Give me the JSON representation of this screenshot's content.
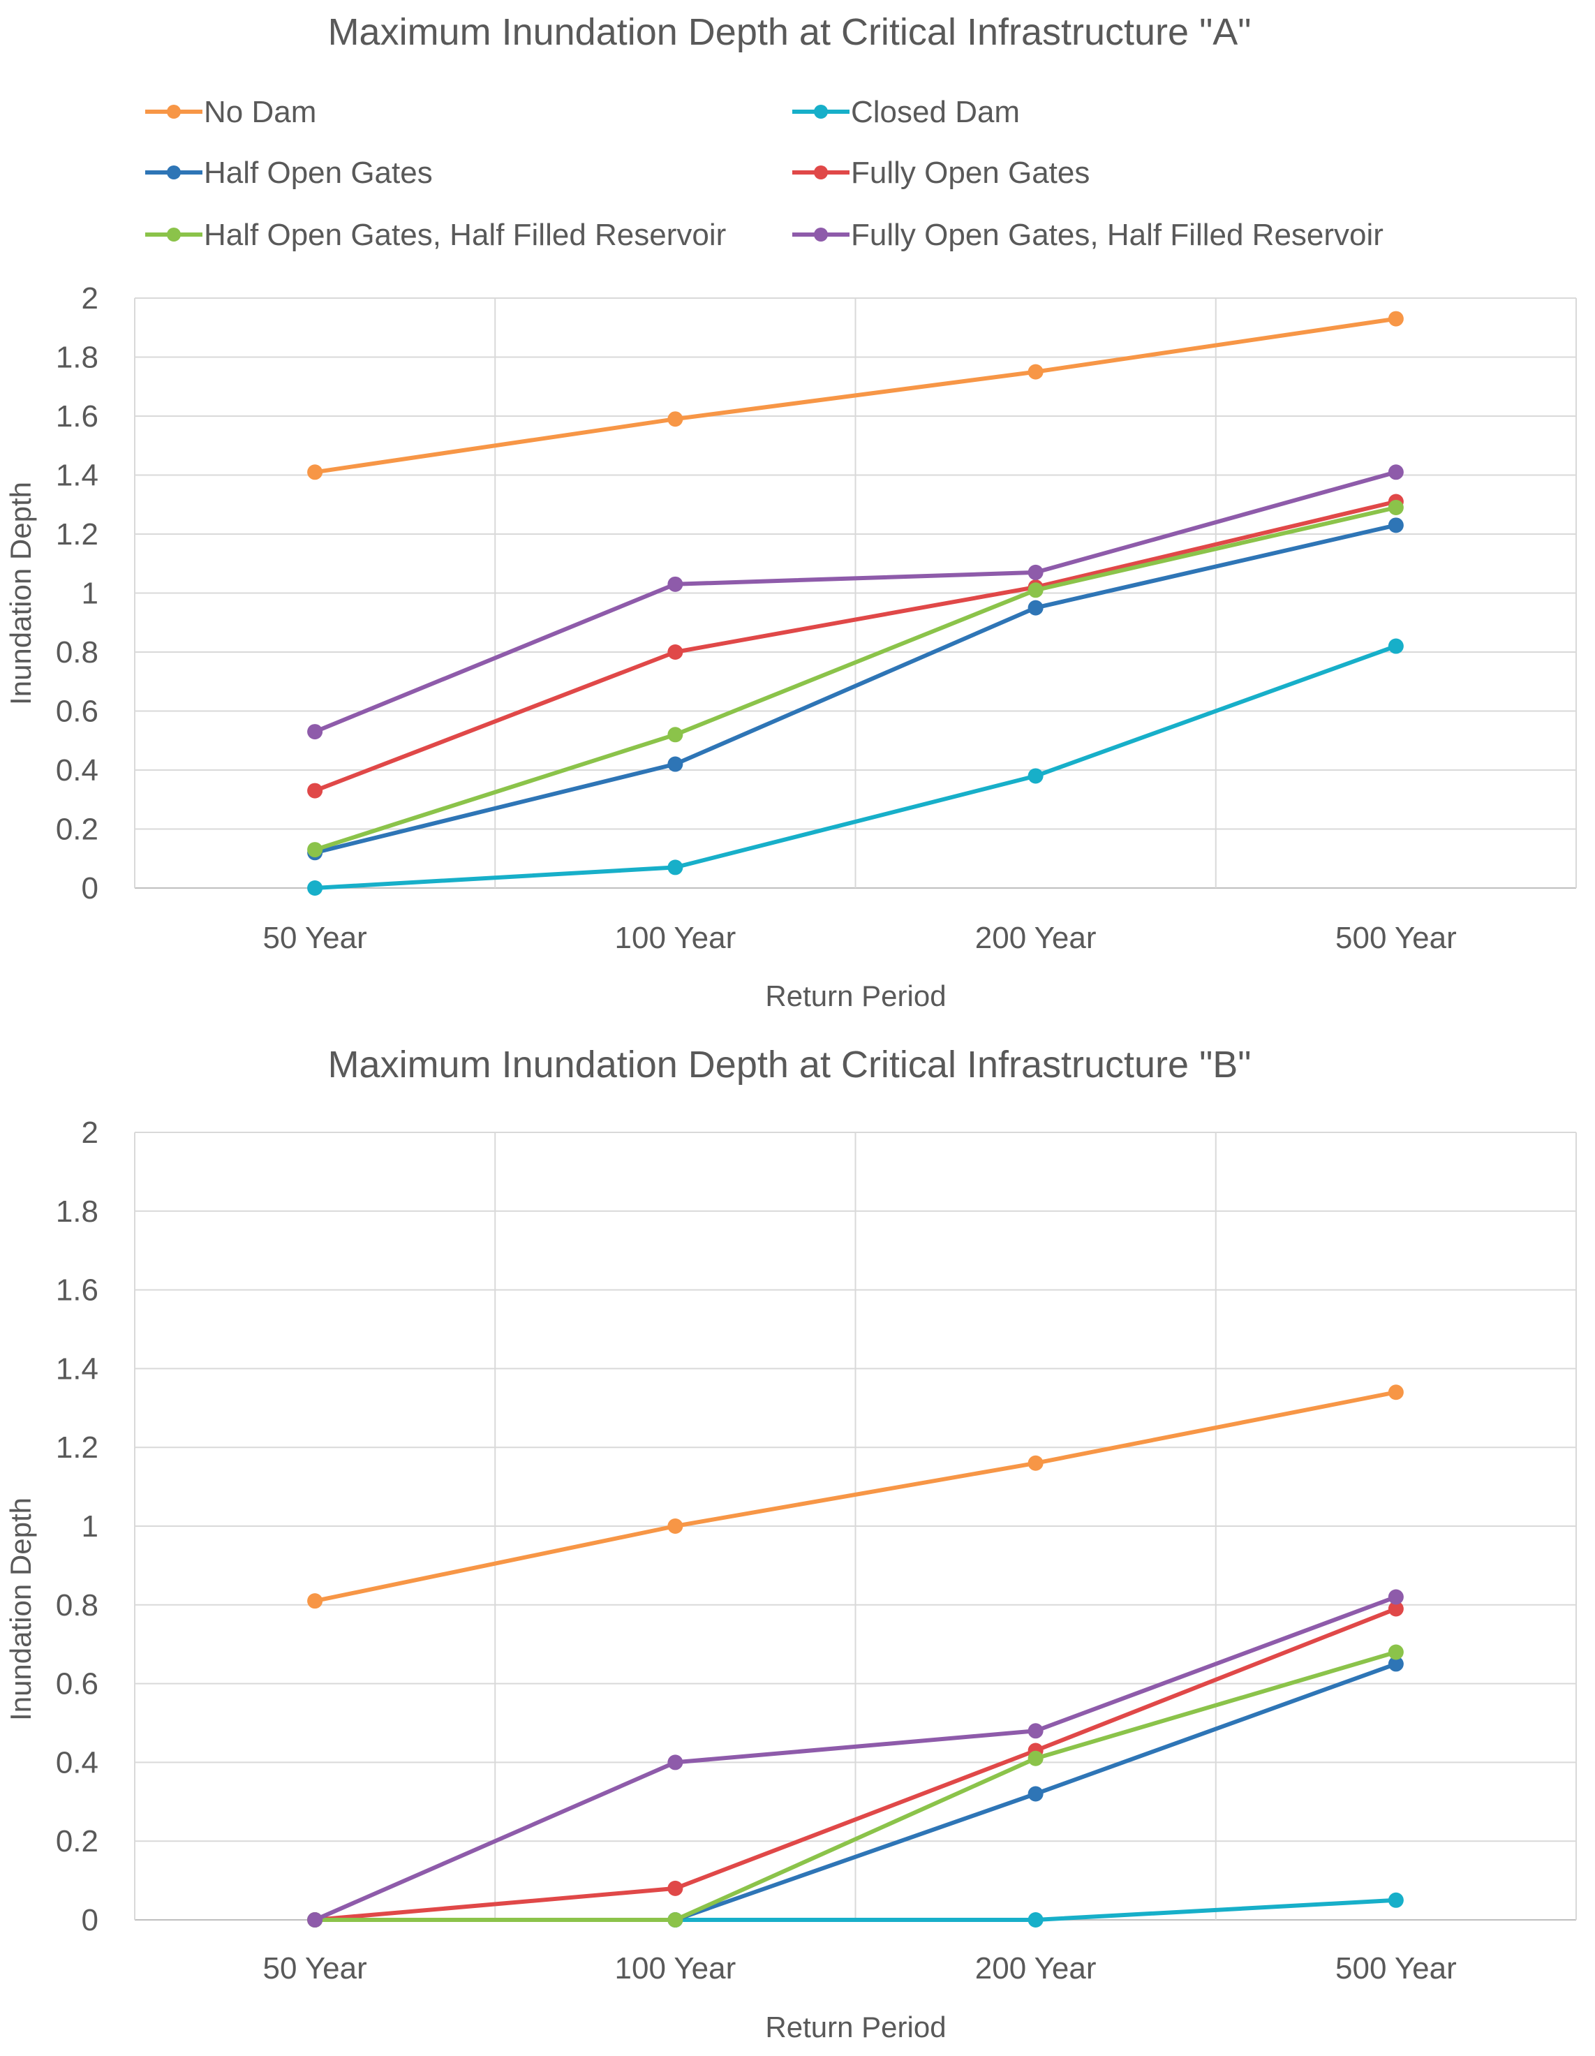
{
  "legend": [
    {
      "name": "No Dam",
      "color": "#F79646"
    },
    {
      "name": "Closed Dam",
      "color": "#17AFC9"
    },
    {
      "name": "Half Open Gates",
      "color": "#2E75B6"
    },
    {
      "name": "Fully Open Gates",
      "color": "#E04848"
    },
    {
      "name": "Half Open Gates, Half Filled Reservoir",
      "color": "#8BC34A"
    },
    {
      "name": "Fully Open Gates, Half Filled Reservoir",
      "color": "#8E5BAA"
    }
  ],
  "chart_data": [
    {
      "type": "line",
      "title": "Maximum Inundation Depth at Critical Infrastructure \"A\"",
      "xlabel": "Return Period",
      "ylabel": "Inundation Depth",
      "categories": [
        "50 Year",
        "100 Year",
        "200 Year",
        "500 Year"
      ],
      "ylim": [
        0,
        2
      ],
      "yticks": [
        "0",
        "0.2",
        "0.4",
        "0.6",
        "0.8",
        "1",
        "1.2",
        "1.4",
        "1.6",
        "1.8",
        "2"
      ],
      "grid": true,
      "legend_position": "top",
      "series": [
        {
          "name": "No Dam",
          "color": "#F79646",
          "values": [
            1.41,
            1.59,
            1.75,
            1.93
          ]
        },
        {
          "name": "Closed Dam",
          "color": "#17AFC9",
          "values": [
            0.0,
            0.07,
            0.38,
            0.82
          ]
        },
        {
          "name": "Half Open Gates",
          "color": "#2E75B6",
          "values": [
            0.12,
            0.42,
            0.95,
            1.23
          ]
        },
        {
          "name": "Fully Open Gates",
          "color": "#E04848",
          "values": [
            0.33,
            0.8,
            1.02,
            1.31
          ]
        },
        {
          "name": "Half Open Gates, Half Filled Reservoir",
          "color": "#8BC34A",
          "values": [
            0.13,
            0.52,
            1.01,
            1.29
          ]
        },
        {
          "name": "Fully Open Gates, Half Filled Reservoir",
          "color": "#8E5BAA",
          "values": [
            0.53,
            1.03,
            1.07,
            1.41
          ]
        }
      ]
    },
    {
      "type": "line",
      "title": "Maximum Inundation Depth at Critical Infrastructure \"B\"",
      "xlabel": "Return Period",
      "ylabel": "Inundation Depth",
      "categories": [
        "50 Year",
        "100 Year",
        "200 Year",
        "500 Year"
      ],
      "ylim": [
        0,
        2
      ],
      "yticks": [
        "0",
        "0.2",
        "0.4",
        "0.6",
        "0.8",
        "1",
        "1.2",
        "1.4",
        "1.6",
        "1.8",
        "2"
      ],
      "grid": true,
      "legend_position": "none",
      "series": [
        {
          "name": "No Dam",
          "color": "#F79646",
          "values": [
            0.81,
            1.0,
            1.16,
            1.34
          ]
        },
        {
          "name": "Closed Dam",
          "color": "#17AFC9",
          "values": [
            0.0,
            0.0,
            0.0,
            0.05
          ]
        },
        {
          "name": "Half Open Gates",
          "color": "#2E75B6",
          "values": [
            0.0,
            0.0,
            0.32,
            0.65
          ]
        },
        {
          "name": "Fully Open Gates",
          "color": "#E04848",
          "values": [
            0.0,
            0.08,
            0.43,
            0.79
          ]
        },
        {
          "name": "Half Open Gates, Half Filled Reservoir",
          "color": "#8BC34A",
          "values": [
            0.0,
            0.0,
            0.41,
            0.68
          ]
        },
        {
          "name": "Fully Open Gates, Half Filled Reservoir",
          "color": "#8E5BAA",
          "values": [
            0.0,
            0.4,
            0.48,
            0.82
          ]
        }
      ]
    }
  ]
}
